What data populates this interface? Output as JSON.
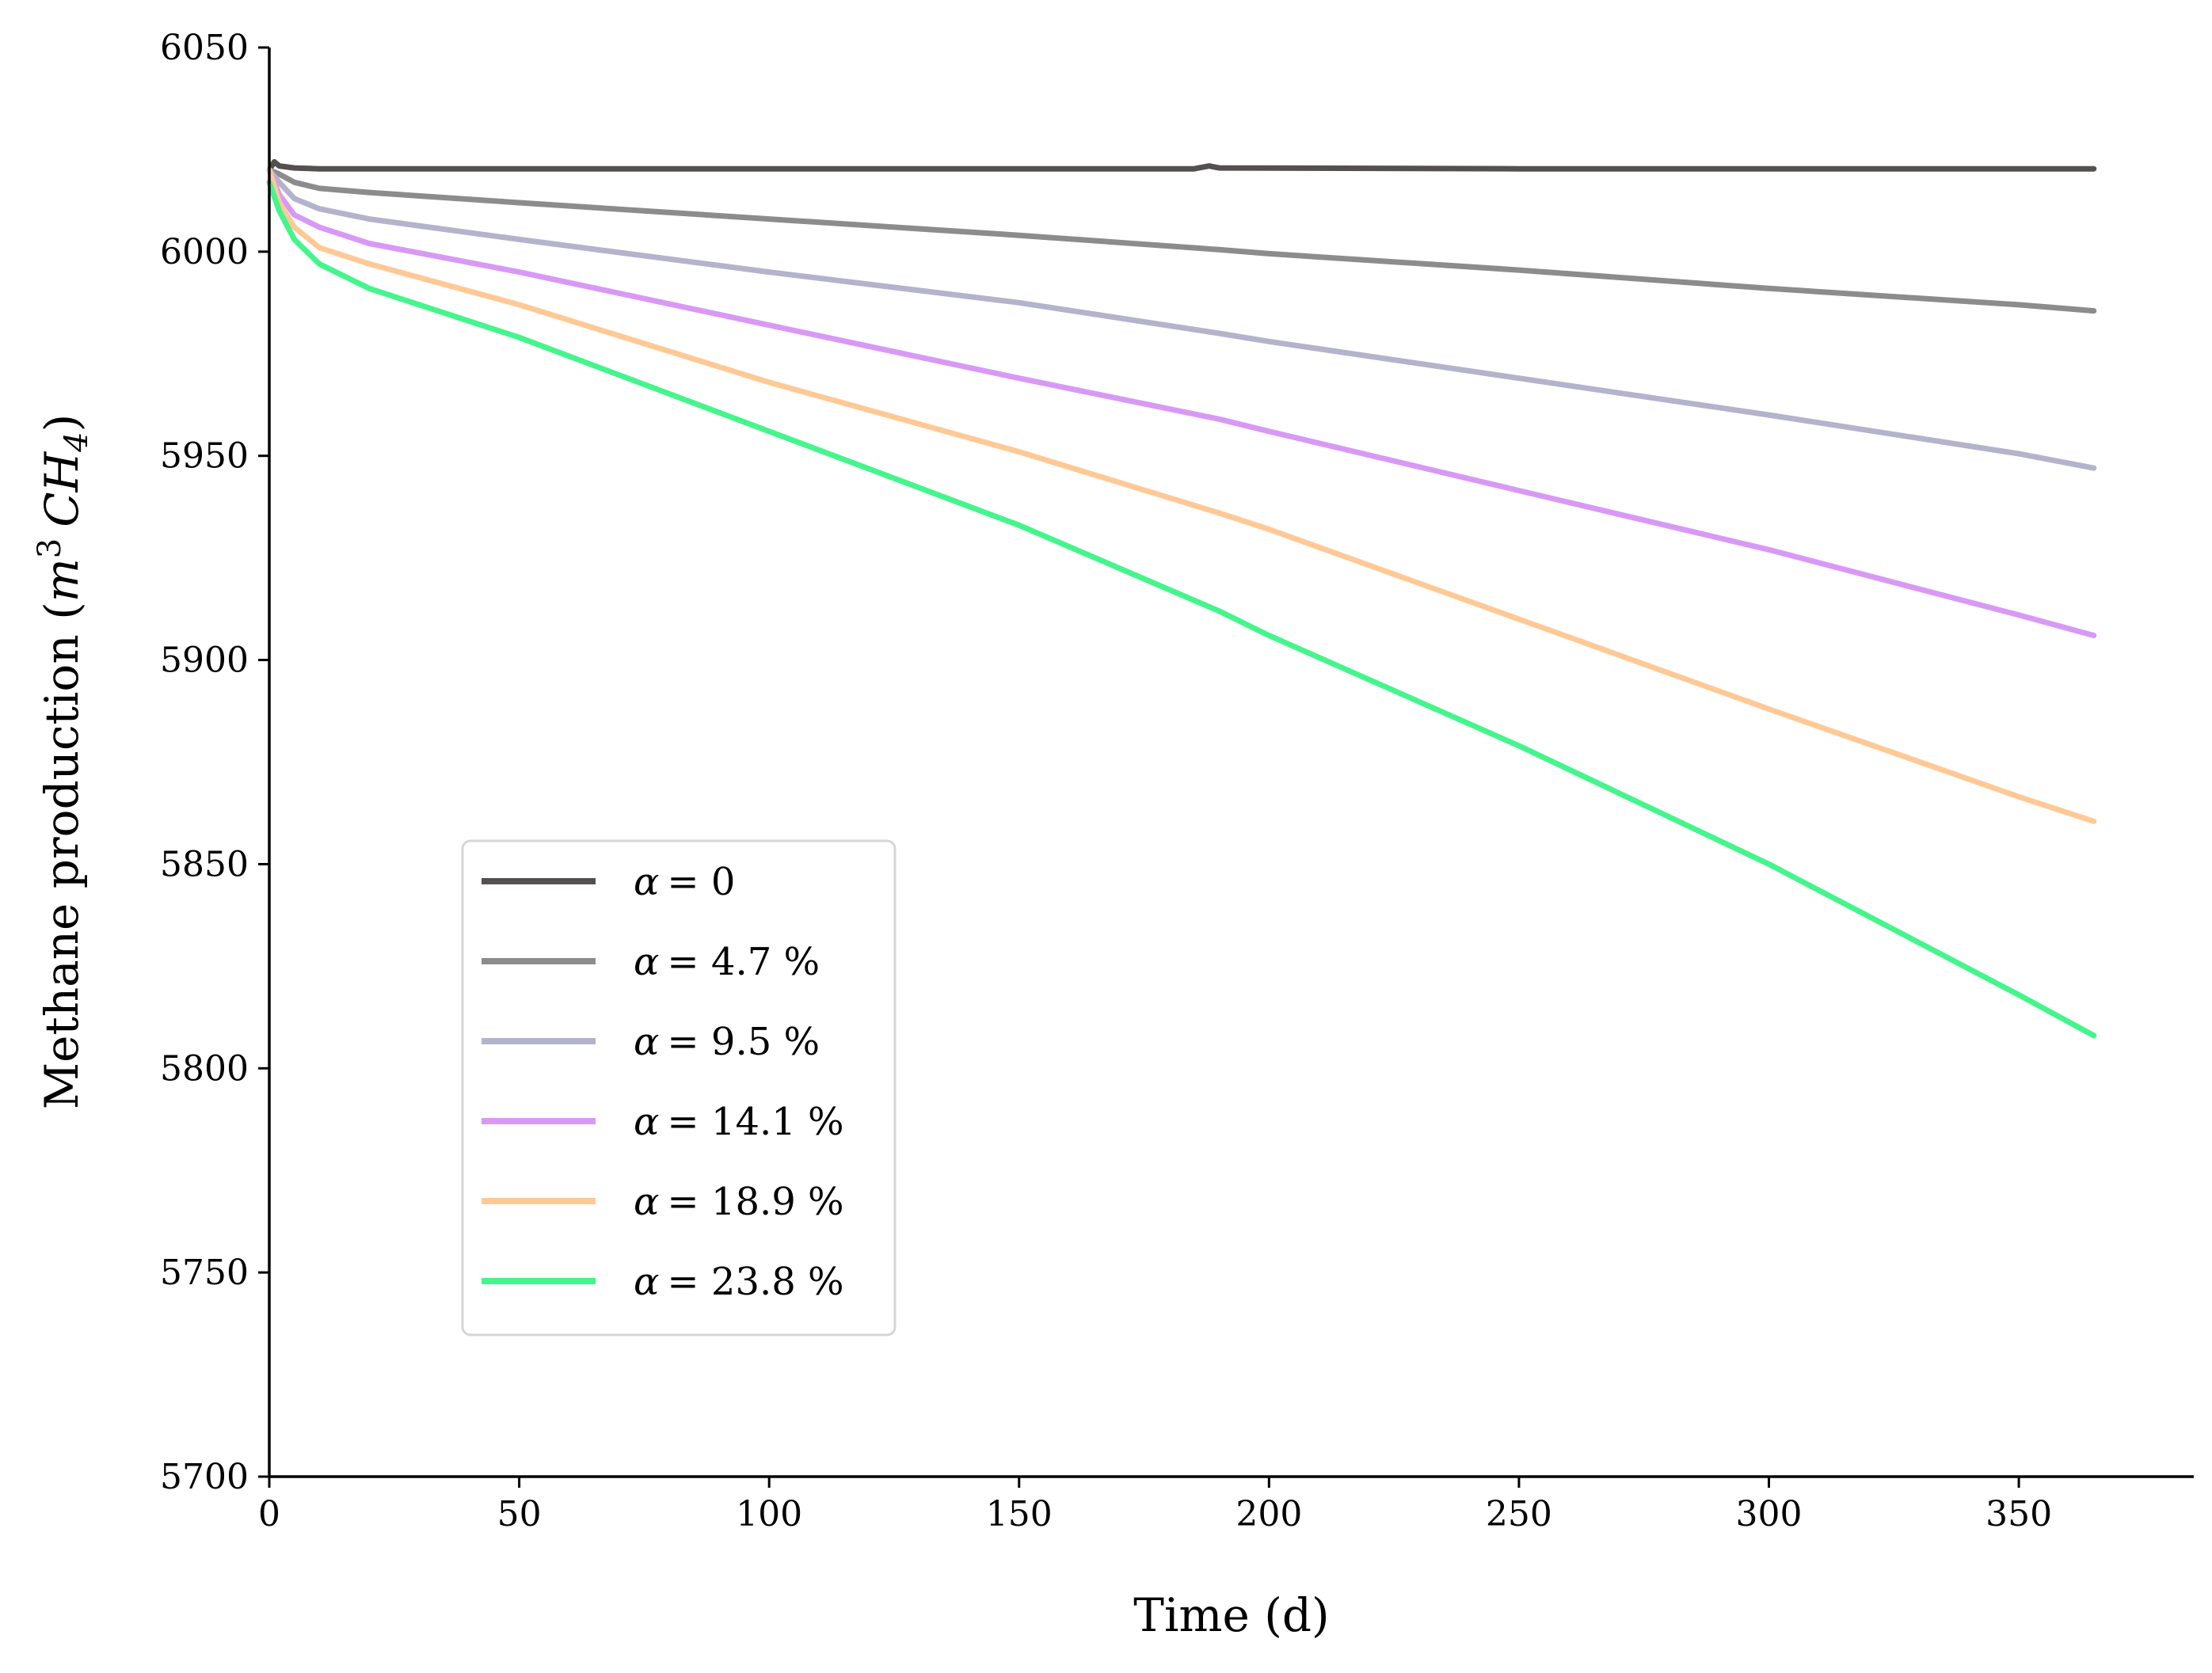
{
  "chart_data": {
    "type": "line",
    "title": "",
    "xlabel": "Time (d)",
    "ylabel_main": "Methane production (",
    "ylabel_unit_m": "m",
    "ylabel_unit_exp": "3",
    "ylabel_unit_ch": "CH",
    "ylabel_unit_sub": "4",
    "ylabel_close": ")",
    "xlim": [
      0,
      385
    ],
    "ylim": [
      5700,
      6050
    ],
    "xticks": [
      0,
      50,
      100,
      150,
      200,
      250,
      300,
      350
    ],
    "yticks": [
      5700,
      5750,
      5800,
      5850,
      5900,
      5950,
      6000,
      6050
    ],
    "grid": false,
    "legend_position": "lower-left",
    "series": [
      {
        "name": "α = 0",
        "symbol": "α",
        "value_label": "= 0",
        "color": "#555050",
        "points": [
          [
            0,
            6020
          ],
          [
            1,
            6022
          ],
          [
            2,
            6021
          ],
          [
            5,
            6020.5
          ],
          [
            10,
            6020.3
          ],
          [
            50,
            6020.3
          ],
          [
            100,
            6020.3
          ],
          [
            150,
            6020.3
          ],
          [
            185,
            6020.3
          ],
          [
            188,
            6021
          ],
          [
            190,
            6020.5
          ],
          [
            250,
            6020.3
          ],
          [
            300,
            6020.3
          ],
          [
            365,
            6020.3
          ]
        ]
      },
      {
        "name": "α = 4.7 %",
        "symbol": "α",
        "value_label": "= 4.7 %",
        "color": "#8c8c8c",
        "points": [
          [
            0,
            6020
          ],
          [
            2,
            6019
          ],
          [
            5,
            6017
          ],
          [
            10,
            6015.5
          ],
          [
            20,
            6014.5
          ],
          [
            50,
            6012
          ],
          [
            100,
            6008
          ],
          [
            150,
            6004
          ],
          [
            190,
            6000.5
          ],
          [
            200,
            5999.5
          ],
          [
            250,
            5995.5
          ],
          [
            300,
            5991
          ],
          [
            350,
            5987
          ],
          [
            365,
            5985.5
          ]
        ]
      },
      {
        "name": "α = 9.5 %",
        "symbol": "α",
        "value_label": "= 9.5 %",
        "color": "#b3b3cc",
        "points": [
          [
            0,
            6020
          ],
          [
            2,
            6017
          ],
          [
            5,
            6013
          ],
          [
            10,
            6010.5
          ],
          [
            20,
            6008
          ],
          [
            50,
            6003
          ],
          [
            100,
            5995
          ],
          [
            150,
            5987.5
          ],
          [
            190,
            5980
          ],
          [
            200,
            5978
          ],
          [
            250,
            5969
          ],
          [
            300,
            5960
          ],
          [
            350,
            5950.5
          ],
          [
            365,
            5947
          ]
        ]
      },
      {
        "name": "α = 14.1 %",
        "symbol": "α",
        "value_label": "= 14.1 %",
        "color": "#d899f5",
        "points": [
          [
            0,
            6020
          ],
          [
            2,
            6014
          ],
          [
            5,
            6009
          ],
          [
            10,
            6006
          ],
          [
            20,
            6002
          ],
          [
            50,
            5995
          ],
          [
            100,
            5982
          ],
          [
            150,
            5969
          ],
          [
            190,
            5959
          ],
          [
            200,
            5956
          ],
          [
            250,
            5941.5
          ],
          [
            300,
            5927
          ],
          [
            350,
            5911
          ],
          [
            365,
            5906
          ]
        ]
      },
      {
        "name": "α = 18.9 %",
        "symbol": "α",
        "value_label": "= 18.9 %",
        "color": "#ffc996",
        "points": [
          [
            0,
            6020
          ],
          [
            2,
            6012
          ],
          [
            5,
            6006
          ],
          [
            10,
            6001
          ],
          [
            20,
            5997
          ],
          [
            50,
            5987
          ],
          [
            100,
            5968
          ],
          [
            150,
            5951
          ],
          [
            190,
            5936
          ],
          [
            200,
            5932
          ],
          [
            250,
            5910
          ],
          [
            300,
            5888
          ],
          [
            350,
            5866.5
          ],
          [
            365,
            5860.5
          ]
        ]
      },
      {
        "name": "α = 23.8 %",
        "symbol": "α",
        "value_label": "= 23.8 %",
        "color": "#44f58c",
        "points": [
          [
            0,
            6017
          ],
          [
            2,
            6010
          ],
          [
            5,
            6003
          ],
          [
            10,
            5997
          ],
          [
            20,
            5991
          ],
          [
            50,
            5979
          ],
          [
            100,
            5956
          ],
          [
            150,
            5933
          ],
          [
            190,
            5912
          ],
          [
            200,
            5906
          ],
          [
            250,
            5879
          ],
          [
            300,
            5850
          ],
          [
            350,
            5818
          ],
          [
            365,
            5808
          ]
        ]
      }
    ]
  }
}
